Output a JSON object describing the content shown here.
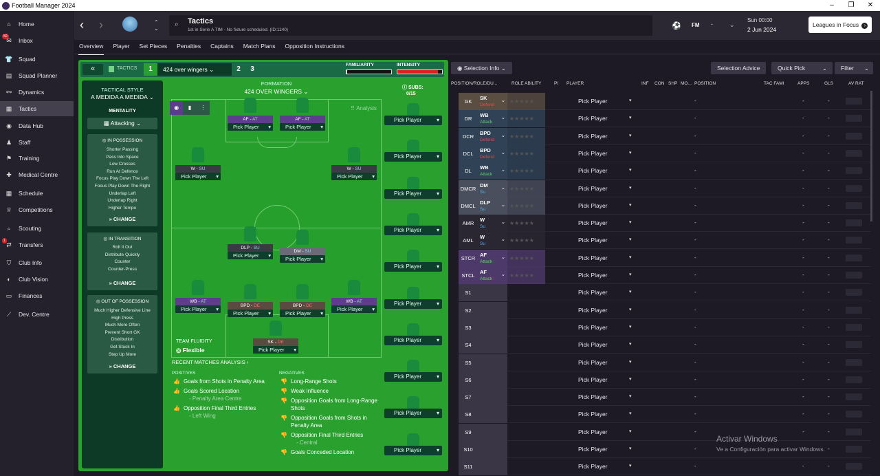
{
  "window": {
    "title": "Football Manager 2024"
  },
  "sidebar": {
    "items": [
      {
        "label": "Home",
        "icon": "home-icon",
        "glyph": "⌂"
      },
      {
        "label": "Inbox",
        "icon": "inbox-icon",
        "glyph": "✉",
        "badge": "50"
      },
      {
        "label": "Squad",
        "icon": "squad-icon",
        "glyph": "👕"
      },
      {
        "label": "Squad Planner",
        "icon": "squad-planner-icon",
        "glyph": "▤"
      },
      {
        "label": "Dynamics",
        "icon": "dynamics-icon",
        "glyph": "⚯"
      },
      {
        "label": "Tactics",
        "icon": "tactics-icon",
        "glyph": "▦",
        "active": true
      },
      {
        "label": "Data Hub",
        "icon": "data-hub-icon",
        "glyph": "◉"
      },
      {
        "label": "Staff",
        "icon": "staff-icon",
        "glyph": "♟"
      },
      {
        "label": "Training",
        "icon": "training-icon",
        "glyph": "⚑"
      },
      {
        "label": "Medical Centre",
        "icon": "medical-icon",
        "glyph": "✚"
      },
      {
        "label": "Schedule",
        "icon": "schedule-icon",
        "glyph": "▦"
      },
      {
        "label": "Competitions",
        "icon": "competitions-icon",
        "glyph": "♕"
      },
      {
        "label": "Scouting",
        "icon": "scouting-icon",
        "glyph": "⌕"
      },
      {
        "label": "Transfers",
        "icon": "transfers-icon",
        "glyph": "⇄",
        "badge": "1"
      },
      {
        "label": "Club Info",
        "icon": "club-info-icon",
        "glyph": "⛉"
      },
      {
        "label": "Club Vision",
        "icon": "club-vision-icon",
        "glyph": "◐"
      },
      {
        "label": "Finances",
        "icon": "finances-icon",
        "glyph": "▭"
      },
      {
        "label": "Dev. Centre",
        "icon": "dev-centre-icon",
        "glyph": "⟋"
      }
    ]
  },
  "header": {
    "title": "Tactics",
    "subtitle": "1st in Serie A TIM - No fixture scheduled. (ID:1140)",
    "fm": "FM",
    "time": "Sun 00:00",
    "date": "2 Jun 2024",
    "leagues": "Leagues in Focus"
  },
  "tabs": [
    "Overview",
    "Player",
    "Set Pieces",
    "Penalties",
    "Captains",
    "Match Plans",
    "Opposition Instructions"
  ],
  "tactics_bar": {
    "label": "TACTICS",
    "slot1": "1",
    "name": "424 over wingers",
    "slot2": "2",
    "slot3": "3",
    "familiarity": "FAMILIARITY",
    "intensity": "INTENSITY",
    "familiarity_level": 0.02,
    "intensity_level": 0.9
  },
  "style": {
    "heading": "TACTICAL STYLE",
    "name": "A MEDIDA A MEDIDA",
    "mentality_label": "MENTALITY",
    "mentality": "Attacking",
    "in_possession": {
      "title": "IN POSSESSION",
      "items": [
        "Shorter Passing",
        "Pass Into Space",
        "Low Crosses",
        "Run At Defence",
        "Focus Play Down The Left",
        "Focus Play Down The Right",
        "Underlap Left",
        "Underlap Right",
        "Higher Tempo"
      ]
    },
    "in_transition": {
      "title": "IN TRANSITION",
      "items": [
        "Roll It Out",
        "Distribute Quickly",
        "Counter",
        "Counter-Press"
      ]
    },
    "out_possession": {
      "title": "OUT OF POSSESSION",
      "items": [
        "Much Higher Defensive Line",
        "High Press",
        "Much More Often",
        "Prevent Short GK",
        "Distribution",
        "Get Stuck In",
        "Step Up More"
      ]
    },
    "change": "CHANGE"
  },
  "formation": {
    "label": "FORMATION",
    "name": "424 OVER WINGERS",
    "subs_label": "SUBS:",
    "subs_count": "0/15",
    "analysis": "Analysis",
    "fluidity_label": "TEAM FLUIDITY",
    "fluidity": "Flexible",
    "pick": "Pick Player",
    "players": [
      {
        "role": "AF",
        "duty": "AT"
      },
      {
        "role": "AF",
        "duty": "AT"
      },
      {
        "role": "W",
        "duty": "SU"
      },
      {
        "role": "W",
        "duty": "SU"
      },
      {
        "role": "DLP",
        "duty": "SU"
      },
      {
        "role": "DM",
        "duty": "SU"
      },
      {
        "role": "WB",
        "duty": "AT"
      },
      {
        "role": "BPD",
        "duty": "DE"
      },
      {
        "role": "BPD",
        "duty": "DE"
      },
      {
        "role": "WB",
        "duty": "AT"
      },
      {
        "role": "SK",
        "duty": "DE"
      }
    ]
  },
  "analysis": {
    "title": "RECENT MATCHES ANALYSIS",
    "positives_label": "POSITIVES",
    "negatives_label": "NEGATIVES",
    "positives": [
      {
        "text": "Goals from Shots in Penalty Area"
      },
      {
        "text": "Goals Scored Location",
        "sub": "- Penalty Area Centre"
      },
      {
        "text": "Opposition Final Third Entries",
        "sub": "- Left Wing"
      }
    ],
    "negatives": [
      {
        "text": "Long-Range Shots"
      },
      {
        "text": "Weak Influence"
      },
      {
        "text": "Opposition Goals from Long-Range Shots"
      },
      {
        "text": "Opposition Goals from Shots in Penalty Area"
      },
      {
        "text": "Opposition Final Third Entries",
        "sub": "- Central"
      },
      {
        "text": "Goals Conceded Location"
      }
    ]
  },
  "grid": {
    "selection_info": "Selection Info",
    "selection_advice": "Selection Advice",
    "quick_pick": "Quick Pick",
    "filter": "Filter",
    "columns": [
      "POSITION/ROLE/DU...",
      "ROLE ABILITY",
      "PI",
      "PLAYER",
      "INF",
      "CON",
      "SHP",
      "MO...",
      "POSITION",
      "TAC FAMI",
      "APPS",
      "GLS",
      "AV RAT"
    ],
    "rows": [
      {
        "pos": "GK",
        "role": "SK",
        "duty": "Defend",
        "color": "#5a4e42",
        "dcolor": "#e04a4a"
      },
      {
        "pos": "DR",
        "role": "WB",
        "duty": "Attack",
        "color": "#2f4256",
        "dcolor": "#5ed36a"
      },
      {
        "pos": "DCR",
        "role": "BPD",
        "duty": "Defend",
        "color": "#2f4256",
        "dcolor": "#e04a4a"
      },
      {
        "pos": "DCL",
        "role": "BPD",
        "duty": "Defend",
        "color": "#2f4256",
        "dcolor": "#e04a4a"
      },
      {
        "pos": "DL",
        "role": "WB",
        "duty": "Attack",
        "color": "#2f4256",
        "dcolor": "#5ed36a"
      },
      {
        "pos": "DMCR",
        "role": "DM",
        "duty": "Su",
        "color": "#4a4f5e",
        "dcolor": "#5bb0e6"
      },
      {
        "pos": "DMCL",
        "role": "DLP",
        "duty": "Su",
        "color": "#4a4f5e",
        "dcolor": "#5bb0e6"
      },
      {
        "pos": "AMR",
        "role": "W",
        "duty": "Su",
        "color": "#2a2733",
        "dcolor": "#5bb0e6"
      },
      {
        "pos": "AML",
        "role": "W",
        "duty": "Su",
        "color": "#2a2733",
        "dcolor": "#5bb0e6"
      },
      {
        "pos": "STCR",
        "role": "AF",
        "duty": "Attack",
        "color": "#4e3a6a",
        "dcolor": "#5ed36a"
      },
      {
        "pos": "STCL",
        "role": "AF",
        "duty": "Attack",
        "color": "#4e3a6a",
        "dcolor": "#5ed36a"
      },
      {
        "pos": "S1"
      },
      {
        "pos": "S2"
      },
      {
        "pos": "S3"
      },
      {
        "pos": "S4"
      },
      {
        "pos": "S5"
      },
      {
        "pos": "S6"
      },
      {
        "pos": "S7"
      },
      {
        "pos": "S8"
      },
      {
        "pos": "S9"
      },
      {
        "pos": "S10"
      },
      {
        "pos": "S11"
      }
    ],
    "pick": "Pick Player",
    "dash": "-"
  },
  "watermark": {
    "title": "Activar Windows",
    "sub": "Ve a Configuración para activar Windows."
  }
}
